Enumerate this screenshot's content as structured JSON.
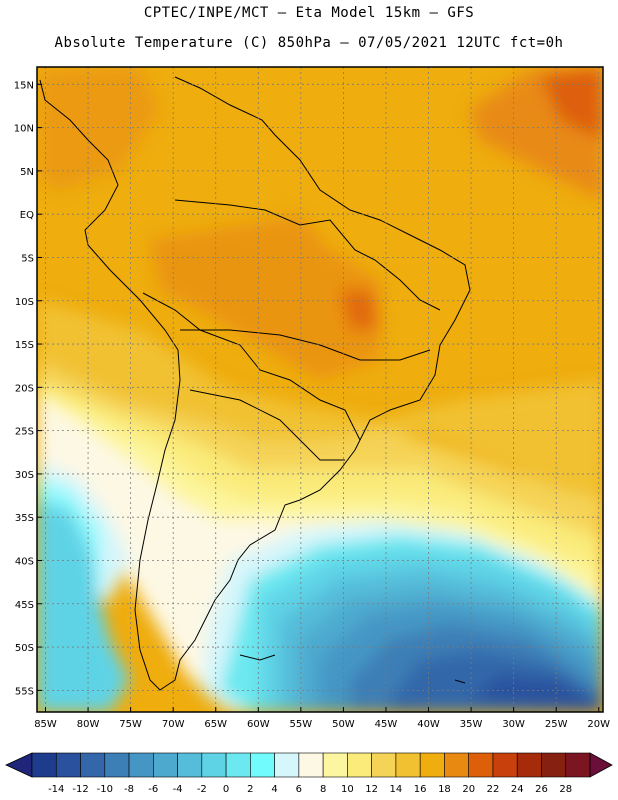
{
  "header": {
    "line1": "CPTEC/INPE/MCT –  Eta Model 15km – GFS",
    "line2": "Absolute Temperature (C) 850hPa – 07/05/2021 12UTC fct=0h"
  },
  "map": {
    "lat_labels": [
      "15N",
      "10N",
      "5N",
      "EQ",
      "5S",
      "10S",
      "15S",
      "20S",
      "25S",
      "30S",
      "35S",
      "40S",
      "45S",
      "50S",
      "55S"
    ],
    "lat_values": [
      15,
      10,
      5,
      0,
      -5,
      -10,
      -15,
      -20,
      -25,
      -30,
      -35,
      -40,
      -45,
      -50,
      -55
    ],
    "lon_labels": [
      "85W",
      "80W",
      "75W",
      "70W",
      "65W",
      "60W",
      "55W",
      "50W",
      "45W",
      "40W",
      "35W",
      "30W",
      "25W",
      "20W"
    ],
    "lon_values": [
      -85,
      -80,
      -75,
      -70,
      -65,
      -60,
      -55,
      -50,
      -45,
      -40,
      -35,
      -30,
      -25,
      -20
    ],
    "extent": {
      "lon_min": -86,
      "lon_max": -19.5,
      "lat_min": -57.5,
      "lat_max": 17
    }
  },
  "colorbar": {
    "labels": [
      "-14",
      "-12",
      "-10",
      "-8",
      "-6",
      "-4",
      "-2",
      "0",
      "2",
      "4",
      "6",
      "8",
      "10",
      "12",
      "14",
      "16",
      "18",
      "20",
      "22",
      "24",
      "26",
      "28"
    ],
    "colors": [
      "#1e3c8c",
      "#2a519e",
      "#3367aa",
      "#3c7eb6",
      "#4596c4",
      "#4ea9cf",
      "#55bcd9",
      "#5fd3e6",
      "#6ce8f0",
      "#72fbfd",
      "#d5f6fb",
      "#fdf8e4",
      "#fdf6a0",
      "#faeb7a",
      "#f5d357",
      "#f1c131",
      "#efad0e",
      "#e88a12",
      "#de5f0a",
      "#c8400c",
      "#a52b0a",
      "#862011",
      "#7c1522"
    ],
    "low_extend_color": "#20257a",
    "high_extend_color": "#6a0f3a"
  }
}
